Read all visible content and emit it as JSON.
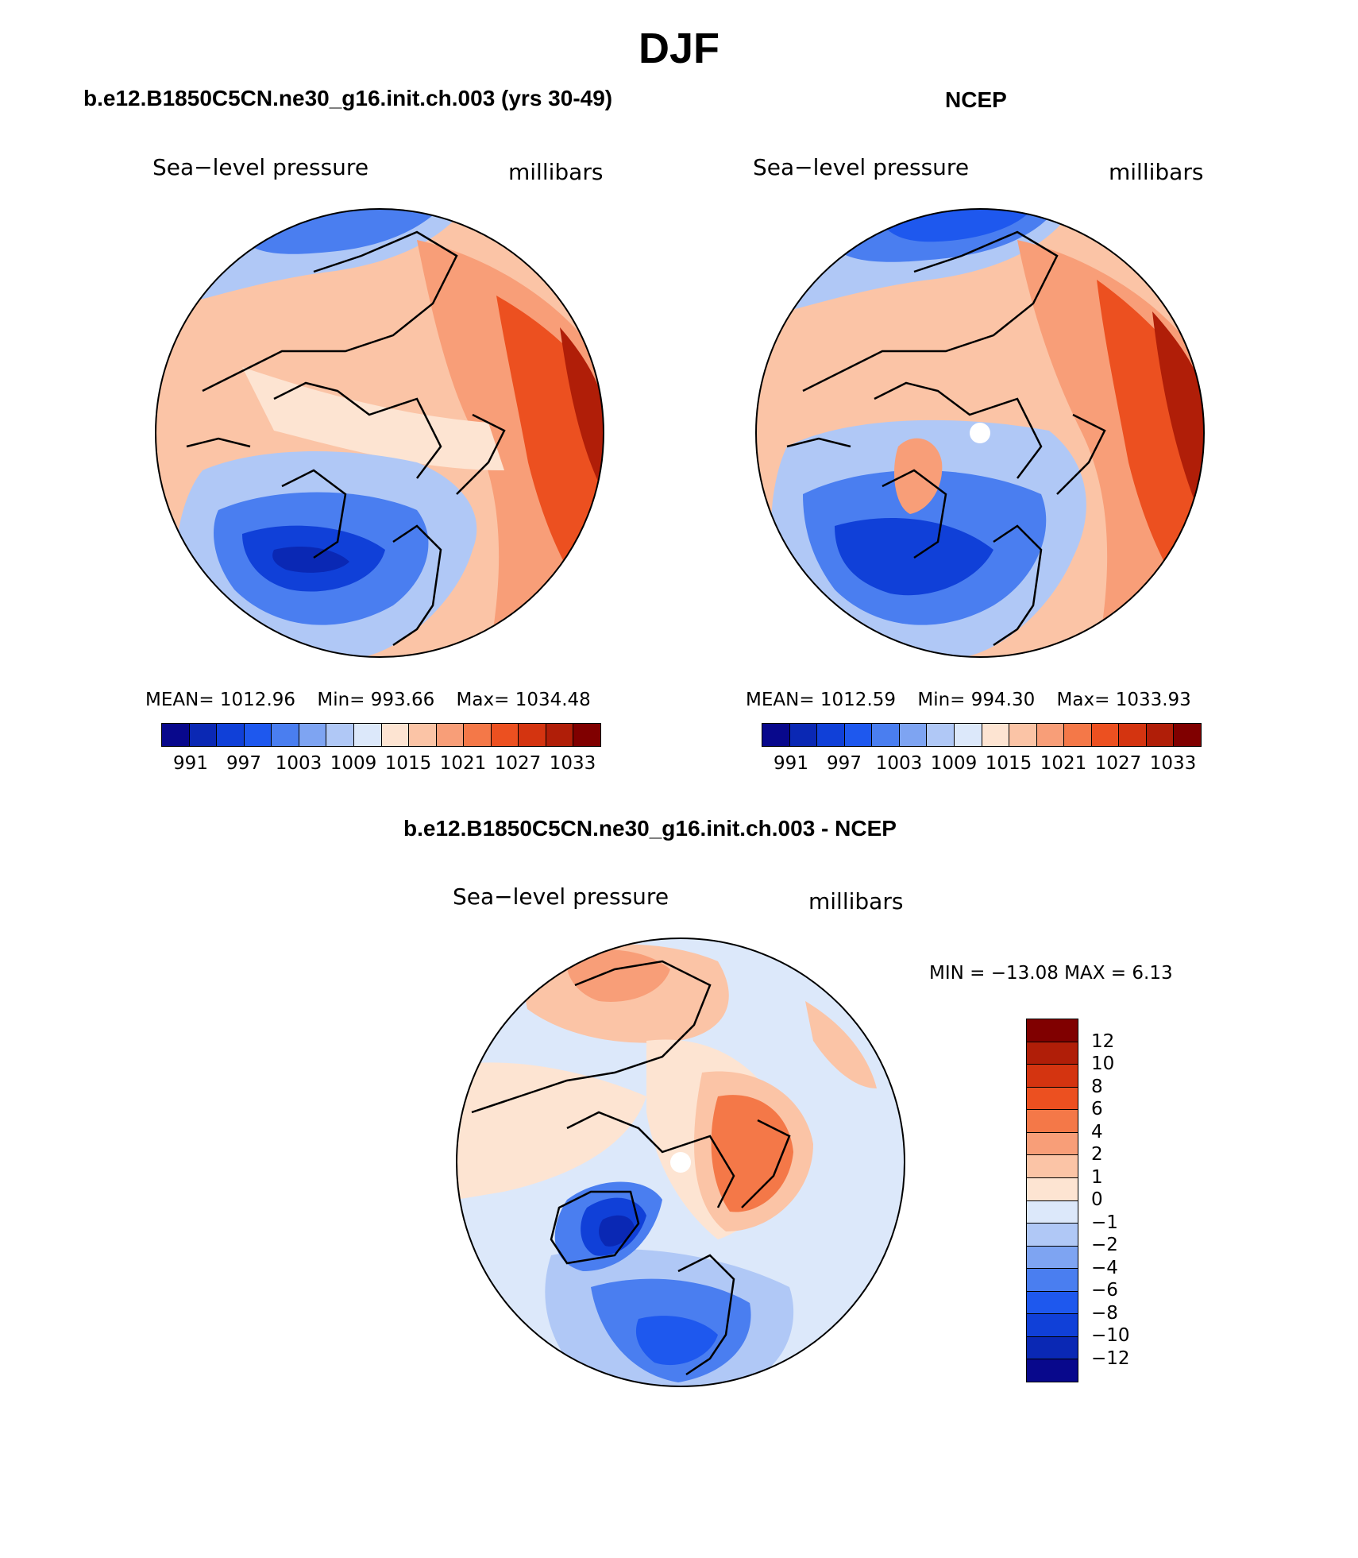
{
  "figure": {
    "title": "DJF"
  },
  "panels": [
    {
      "id": "model",
      "case_title": "b.e12.B1850C5CN.ne30_g16.init.ch.003 (yrs 30-49)",
      "variable": "Sea−level pressure",
      "units": "millibars",
      "stats": {
        "mean_label": "MEAN=",
        "mean": "1012.96",
        "min_label": "Min=",
        "min": "993.66",
        "max_label": "Max=",
        "max": "1034.48"
      },
      "colorbar_ticks": [
        "991",
        "997",
        "1003",
        "1009",
        "1015",
        "1021",
        "1027",
        "1033"
      ]
    },
    {
      "id": "obs",
      "case_title": "NCEP",
      "variable": "Sea−level pressure",
      "units": "millibars",
      "stats": {
        "mean_label": "MEAN=",
        "mean": "1012.59",
        "min_label": "Min=",
        "min": "994.30",
        "max_label": "Max=",
        "max": "1033.93"
      },
      "colorbar_ticks": [
        "991",
        "997",
        "1003",
        "1009",
        "1015",
        "1021",
        "1027",
        "1033"
      ]
    },
    {
      "id": "diff",
      "case_title": "b.e12.B1850C5CN.ne30_g16.init.ch.003 - NCEP",
      "variable": "Sea−level pressure",
      "units": "millibars",
      "stats_text": "MIN = −13.08 MAX =    6.13",
      "colorbar_ticks": [
        "12",
        "10",
        "8",
        "6",
        "4",
        "2",
        "1",
        "0",
        "−1",
        "−2",
        "−4",
        "−6",
        "−8",
        "−10",
        "−12"
      ]
    }
  ],
  "palettes": {
    "abs": [
      "#08088c",
      "#0a28b4",
      "#1040d8",
      "#1e58ee",
      "#4a7ef0",
      "#7ea4f2",
      "#b0c8f6",
      "#dce8fa",
      "#fde4d2",
      "#fbc4a6",
      "#f89e78",
      "#f47848",
      "#ec5020",
      "#d43410",
      "#b01e08",
      "#800000"
    ],
    "diff": [
      "#800000",
      "#b01e08",
      "#d43410",
      "#ec5020",
      "#f47848",
      "#f89e78",
      "#fbc4a6",
      "#fde4d2",
      "#dce8fa",
      "#b0c8f6",
      "#7ea4f2",
      "#4a7ef0",
      "#1e58ee",
      "#1040d8",
      "#0a28b4",
      "#08088c"
    ]
  }
}
